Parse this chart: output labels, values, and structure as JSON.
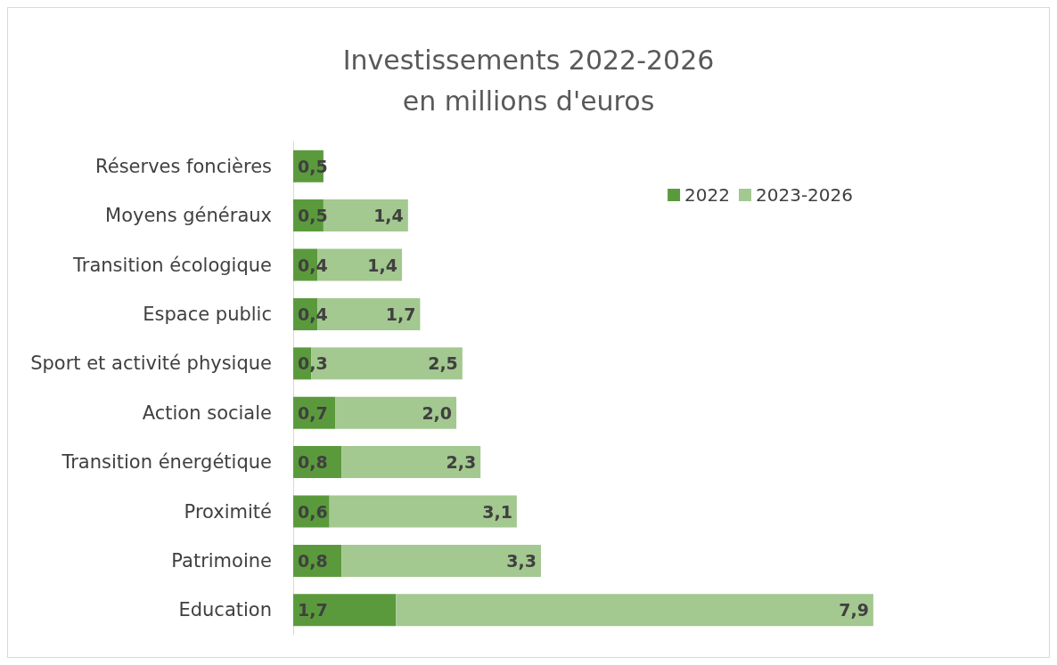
{
  "chart_data": {
    "type": "bar",
    "orientation": "horizontal",
    "stacked": true,
    "title": "Investissements 2022-2026\nen millions d'euros",
    "categories": [
      "Réserves foncières",
      "Moyens généraux",
      "Transition écologique",
      "Espace public",
      "Sport et activité physique",
      "Action sociale",
      "Transition énergétique",
      "Proximité",
      "Patrimoine",
      "Education"
    ],
    "series": [
      {
        "name": "2022",
        "color": "#5b9a3c",
        "values": [
          0.5,
          0.5,
          0.4,
          0.4,
          0.3,
          0.7,
          0.8,
          0.6,
          0.8,
          1.7
        ],
        "value_labels": [
          "0,5",
          "0,5",
          "0,4",
          "0,4",
          "0,3",
          "0,7",
          "0,8",
          "0,6",
          "0,8",
          "1,7"
        ]
      },
      {
        "name": "2023-2026",
        "color": "#a3c890",
        "values": [
          null,
          1.4,
          1.4,
          1.7,
          2.5,
          2.0,
          2.3,
          3.1,
          3.3,
          7.9
        ],
        "value_labels": [
          null,
          "1,4",
          "1,4",
          "1,7",
          "2,5",
          "2,0",
          "2,3",
          "3,1",
          "3,3",
          "7,9"
        ]
      }
    ],
    "legend": "top right"
  }
}
